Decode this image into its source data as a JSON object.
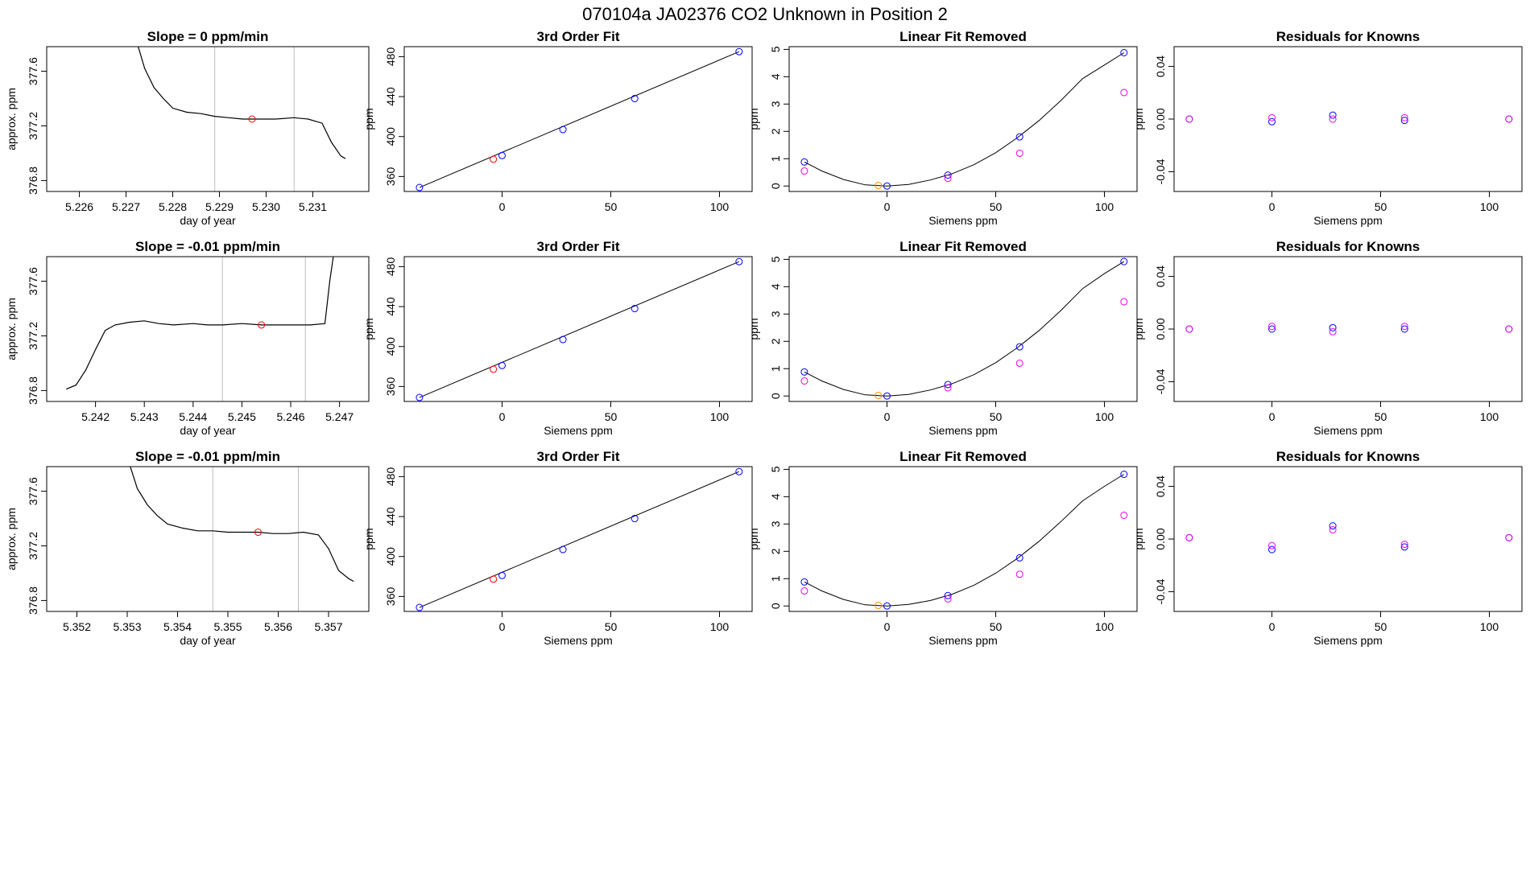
{
  "page_title": "070104a      JA02376   CO2 Unknown in Position  2",
  "colors": {
    "axis": "#000000",
    "line": "#000000",
    "grid": "#bebebe",
    "red": "#ff0000",
    "blue": "#0000ff",
    "magenta": "#ee00ee",
    "orange": "#ff8c00"
  },
  "chart_data": [
    {
      "type": "line",
      "row": 0,
      "col": 0,
      "title": "Slope =  0  ppm/min",
      "xlabel": "day of year",
      "ylabel": "approx. ppm",
      "xlim": [
        5.2253,
        5.2322
      ],
      "ylim": [
        376.72,
        377.78
      ],
      "xticks": [
        5.226,
        5.227,
        5.228,
        5.229,
        5.23,
        5.231
      ],
      "xticklabels": [
        "5.226",
        "5.227",
        "5.228",
        "5.229",
        "5.230",
        "5.231"
      ],
      "yticks": [
        376.8,
        377.2,
        377.6
      ],
      "yticklabels": [
        "376.8",
        "377.2",
        "377.6"
      ],
      "vlines": [
        5.2289,
        5.2306
      ],
      "highlight": {
        "x": 5.2297,
        "y": 377.25
      },
      "x": [
        5.2272,
        5.2274,
        5.2276,
        5.2278,
        5.228,
        5.2283,
        5.2286,
        5.2289,
        5.2292,
        5.2295,
        5.2299,
        5.2302,
        5.2306,
        5.2309,
        5.2312,
        5.2314,
        5.2316,
        5.2317
      ],
      "y": [
        377.85,
        377.62,
        377.48,
        377.4,
        377.33,
        377.3,
        377.29,
        377.27,
        377.26,
        377.25,
        377.25,
        377.25,
        377.26,
        377.25,
        377.22,
        377.08,
        376.98,
        376.96
      ]
    },
    {
      "type": "scatter_fit",
      "row": 0,
      "col": 1,
      "title": "3rd Order Fit",
      "xlabel": "",
      "ylabel": "ppm",
      "xlim": [
        -45,
        115
      ],
      "ylim": [
        345,
        490
      ],
      "xticks": [
        0,
        50,
        100
      ],
      "xticklabels": [
        "0",
        "50",
        "100"
      ],
      "yticks": [
        360,
        400,
        440,
        480
      ],
      "yticklabels": [
        "360",
        "400",
        "440",
        "480"
      ],
      "fit": {
        "x": [
          -38,
          109
        ],
        "y": [
          349,
          485
        ]
      },
      "points": [
        {
          "x": -38,
          "y": 349,
          "c": "blue"
        },
        {
          "x": -4,
          "y": 377.3,
          "c": "red"
        },
        {
          "x": 0,
          "y": 381,
          "c": "blue"
        },
        {
          "x": 28,
          "y": 407,
          "c": "blue"
        },
        {
          "x": 61,
          "y": 438,
          "c": "blue"
        },
        {
          "x": 109,
          "y": 485,
          "c": "blue"
        }
      ]
    },
    {
      "type": "scatter_fit",
      "row": 0,
      "col": 2,
      "title": "Linear Fit Removed",
      "xlabel": "Siemens ppm",
      "ylabel": "ppm",
      "xlim": [
        -45,
        115
      ],
      "ylim": [
        -0.2,
        5.1
      ],
      "xticks": [
        0,
        50,
        100
      ],
      "xticklabels": [
        "0",
        "50",
        "100"
      ],
      "yticks": [
        0,
        1,
        2,
        3,
        4,
        5
      ],
      "yticklabels": [
        "0",
        "1",
        "2",
        "3",
        "4",
        "5"
      ],
      "curve": {
        "x": [
          -38,
          -30,
          -20,
          -10,
          0,
          10,
          20,
          30,
          40,
          50,
          60,
          70,
          80,
          90,
          100,
          109
        ],
        "y": [
          0.88,
          0.55,
          0.24,
          0.04,
          0,
          0.06,
          0.22,
          0.45,
          0.78,
          1.22,
          1.77,
          2.4,
          3.13,
          3.93,
          4.43,
          4.88
        ]
      },
      "points": [
        {
          "x": -38,
          "y": 0.88,
          "c": "blue"
        },
        {
          "x": -38,
          "y": 0.55,
          "c": "magenta"
        },
        {
          "x": -4,
          "y": 0.02,
          "c": "orange"
        },
        {
          "x": 0,
          "y": 0,
          "c": "blue"
        },
        {
          "x": 28,
          "y": 0.4,
          "c": "blue"
        },
        {
          "x": 28,
          "y": 0.28,
          "c": "magenta"
        },
        {
          "x": 61,
          "y": 1.8,
          "c": "blue"
        },
        {
          "x": 61,
          "y": 1.2,
          "c": "magenta"
        },
        {
          "x": 109,
          "y": 4.88,
          "c": "blue"
        },
        {
          "x": 109,
          "y": 3.42,
          "c": "magenta"
        }
      ]
    },
    {
      "type": "scatter",
      "row": 0,
      "col": 3,
      "title": "Residuals for Knowns",
      "xlabel": "Siemens ppm",
      "ylabel": "ppm",
      "xlim": [
        -45,
        115
      ],
      "ylim": [
        -0.055,
        0.055
      ],
      "xticks": [
        0,
        50,
        100
      ],
      "xticklabels": [
        "0",
        "50",
        "100"
      ],
      "yticks": [
        -0.04,
        0,
        0.04
      ],
      "yticklabels": [
        "-0.04",
        "0.00",
        "0.04"
      ],
      "points": [
        {
          "x": -38,
          "y": 0,
          "c": "blue"
        },
        {
          "x": -38,
          "y": 0,
          "c": "magenta"
        },
        {
          "x": 0,
          "y": -0.002,
          "c": "blue"
        },
        {
          "x": 0,
          "y": 0.001,
          "c": "magenta"
        },
        {
          "x": 28,
          "y": 0.003,
          "c": "blue"
        },
        {
          "x": 28,
          "y": 0,
          "c": "magenta"
        },
        {
          "x": 61,
          "y": -0.001,
          "c": "blue"
        },
        {
          "x": 61,
          "y": 0.001,
          "c": "magenta"
        },
        {
          "x": 109,
          "y": 0,
          "c": "blue"
        },
        {
          "x": 109,
          "y": 0,
          "c": "magenta"
        }
      ]
    },
    {
      "type": "line",
      "row": 1,
      "col": 0,
      "title": "Slope =  -0.01  ppm/min",
      "xlabel": "day of year",
      "ylabel": "approx. ppm",
      "xlim": [
        5.241,
        5.2476
      ],
      "ylim": [
        376.72,
        377.78
      ],
      "xticks": [
        5.242,
        5.243,
        5.244,
        5.245,
        5.246,
        5.247
      ],
      "xticklabels": [
        "5.242",
        "5.243",
        "5.244",
        "5.245",
        "5.246",
        "5.247"
      ],
      "yticks": [
        376.8,
        377.2,
        377.6
      ],
      "yticklabels": [
        "376.8",
        "377.2",
        "377.6"
      ],
      "vlines": [
        5.2446,
        5.2463
      ],
      "highlight": {
        "x": 5.2454,
        "y": 377.28
      },
      "x": [
        5.2414,
        5.2416,
        5.2418,
        5.242,
        5.2422,
        5.2424,
        5.2427,
        5.243,
        5.2433,
        5.2436,
        5.244,
        5.2443,
        5.2446,
        5.245,
        5.2454,
        5.2457,
        5.246,
        5.2464,
        5.2467,
        5.2468,
        5.2469
      ],
      "y": [
        376.81,
        376.84,
        376.95,
        377.1,
        377.24,
        377.28,
        377.3,
        377.31,
        377.29,
        377.28,
        377.29,
        377.28,
        377.28,
        377.29,
        377.28,
        377.28,
        377.28,
        377.28,
        377.29,
        377.6,
        377.85
      ]
    },
    {
      "type": "scatter_fit",
      "row": 1,
      "col": 1,
      "title": "3rd Order Fit",
      "xlabel": "Siemens ppm",
      "ylabel": "ppm",
      "xlim": [
        -45,
        115
      ],
      "ylim": [
        345,
        490
      ],
      "xticks": [
        0,
        50,
        100
      ],
      "xticklabels": [
        "0",
        "50",
        "100"
      ],
      "yticks": [
        360,
        400,
        440,
        480
      ],
      "yticklabels": [
        "360",
        "400",
        "440",
        "480"
      ],
      "fit": {
        "x": [
          -38,
          109
        ],
        "y": [
          349,
          485
        ]
      },
      "points": [
        {
          "x": -38,
          "y": 349,
          "c": "blue"
        },
        {
          "x": -4,
          "y": 377.3,
          "c": "red"
        },
        {
          "x": 0,
          "y": 381,
          "c": "blue"
        },
        {
          "x": 28,
          "y": 407,
          "c": "blue"
        },
        {
          "x": 61,
          "y": 438,
          "c": "blue"
        },
        {
          "x": 109,
          "y": 485,
          "c": "blue"
        }
      ]
    },
    {
      "type": "scatter_fit",
      "row": 1,
      "col": 2,
      "title": "Linear Fit Removed",
      "xlabel": "Siemens ppm",
      "ylabel": "ppm",
      "xlim": [
        -45,
        115
      ],
      "ylim": [
        -0.2,
        5.1
      ],
      "xticks": [
        0,
        50,
        100
      ],
      "xticklabels": [
        "0",
        "50",
        "100"
      ],
      "yticks": [
        0,
        1,
        2,
        3,
        4,
        5
      ],
      "yticklabels": [
        "0",
        "1",
        "2",
        "3",
        "4",
        "5"
      ],
      "curve": {
        "x": [
          -38,
          -30,
          -20,
          -10,
          0,
          10,
          20,
          30,
          40,
          50,
          60,
          70,
          80,
          90,
          100,
          109
        ],
        "y": [
          0.88,
          0.55,
          0.24,
          0.04,
          0,
          0.06,
          0.22,
          0.45,
          0.78,
          1.22,
          1.77,
          2.4,
          3.13,
          3.93,
          4.48,
          4.92
        ]
      },
      "points": [
        {
          "x": -38,
          "y": 0.88,
          "c": "blue"
        },
        {
          "x": -38,
          "y": 0.55,
          "c": "magenta"
        },
        {
          "x": -4,
          "y": 0.02,
          "c": "orange"
        },
        {
          "x": 0,
          "y": 0,
          "c": "blue"
        },
        {
          "x": 28,
          "y": 0.42,
          "c": "blue"
        },
        {
          "x": 28,
          "y": 0.3,
          "c": "magenta"
        },
        {
          "x": 61,
          "y": 1.8,
          "c": "blue"
        },
        {
          "x": 61,
          "y": 1.2,
          "c": "magenta"
        },
        {
          "x": 109,
          "y": 4.92,
          "c": "blue"
        },
        {
          "x": 109,
          "y": 3.45,
          "c": "magenta"
        }
      ]
    },
    {
      "type": "scatter",
      "row": 1,
      "col": 3,
      "title": "Residuals for Knowns",
      "xlabel": "Siemens ppm",
      "ylabel": "ppm",
      "xlim": [
        -45,
        115
      ],
      "ylim": [
        -0.055,
        0.055
      ],
      "xticks": [
        0,
        50,
        100
      ],
      "xticklabels": [
        "0",
        "50",
        "100"
      ],
      "yticks": [
        -0.04,
        0,
        0.04
      ],
      "yticklabels": [
        "-0.04",
        "0.00",
        "0.04"
      ],
      "points": [
        {
          "x": -38,
          "y": 0,
          "c": "blue"
        },
        {
          "x": -38,
          "y": 0,
          "c": "magenta"
        },
        {
          "x": 0,
          "y": 0,
          "c": "blue"
        },
        {
          "x": 0,
          "y": 0.002,
          "c": "magenta"
        },
        {
          "x": 28,
          "y": 0.001,
          "c": "blue"
        },
        {
          "x": 28,
          "y": -0.002,
          "c": "magenta"
        },
        {
          "x": 61,
          "y": 0,
          "c": "blue"
        },
        {
          "x": 61,
          "y": 0.002,
          "c": "magenta"
        },
        {
          "x": 109,
          "y": 0,
          "c": "blue"
        },
        {
          "x": 109,
          "y": 0,
          "c": "magenta"
        }
      ]
    },
    {
      "type": "line",
      "row": 2,
      "col": 0,
      "title": "Slope =  -0.01  ppm/min",
      "xlabel": "day of year",
      "ylabel": "approx. ppm",
      "xlim": [
        5.3514,
        5.3578
      ],
      "ylim": [
        376.72,
        377.78
      ],
      "xticks": [
        5.352,
        5.353,
        5.354,
        5.355,
        5.356,
        5.357
      ],
      "xticklabels": [
        "5.352",
        "5.353",
        "5.354",
        "5.355",
        "5.356",
        "5.357"
      ],
      "yticks": [
        376.8,
        377.2,
        377.6
      ],
      "yticklabels": [
        "376.8",
        "377.2",
        "377.6"
      ],
      "vlines": [
        5.3547,
        5.3564
      ],
      "highlight": {
        "x": 5.3556,
        "y": 377.3
      },
      "x": [
        5.353,
        5.3532,
        5.3534,
        5.3536,
        5.3538,
        5.3541,
        5.3544,
        5.3547,
        5.355,
        5.3553,
        5.3556,
        5.3559,
        5.3562,
        5.3565,
        5.3568,
        5.357,
        5.3572,
        5.3574,
        5.3575
      ],
      "y": [
        377.85,
        377.62,
        377.5,
        377.42,
        377.36,
        377.33,
        377.31,
        377.31,
        377.3,
        377.3,
        377.3,
        377.29,
        377.29,
        377.3,
        377.28,
        377.18,
        377.02,
        376.96,
        376.94
      ]
    },
    {
      "type": "scatter_fit",
      "row": 2,
      "col": 1,
      "title": "3rd Order Fit",
      "xlabel": "Siemens ppm",
      "ylabel": "ppm",
      "xlim": [
        -45,
        115
      ],
      "ylim": [
        345,
        490
      ],
      "xticks": [
        0,
        50,
        100
      ],
      "xticklabels": [
        "0",
        "50",
        "100"
      ],
      "yticks": [
        360,
        400,
        440,
        480
      ],
      "yticklabels": [
        "360",
        "400",
        "440",
        "480"
      ],
      "fit": {
        "x": [
          -38,
          109
        ],
        "y": [
          349,
          485
        ]
      },
      "points": [
        {
          "x": -38,
          "y": 349,
          "c": "blue"
        },
        {
          "x": -4,
          "y": 377.3,
          "c": "red"
        },
        {
          "x": 0,
          "y": 381,
          "c": "blue"
        },
        {
          "x": 28,
          "y": 407,
          "c": "blue"
        },
        {
          "x": 61,
          "y": 438,
          "c": "blue"
        },
        {
          "x": 109,
          "y": 485,
          "c": "blue"
        }
      ]
    },
    {
      "type": "scatter_fit",
      "row": 2,
      "col": 2,
      "title": "Linear Fit Removed",
      "xlabel": "Siemens ppm",
      "ylabel": "ppm",
      "xlim": [
        -45,
        115
      ],
      "ylim": [
        -0.2,
        5.1
      ],
      "xticks": [
        0,
        50,
        100
      ],
      "xticklabels": [
        "0",
        "50",
        "100"
      ],
      "yticks": [
        0,
        1,
        2,
        3,
        4,
        5
      ],
      "yticklabels": [
        "0",
        "1",
        "2",
        "3",
        "4",
        "5"
      ],
      "curve": {
        "x": [
          -38,
          -30,
          -20,
          -10,
          0,
          10,
          20,
          30,
          40,
          50,
          60,
          70,
          80,
          90,
          100,
          109
        ],
        "y": [
          0.88,
          0.55,
          0.24,
          0.04,
          0,
          0.06,
          0.2,
          0.43,
          0.76,
          1.2,
          1.74,
          2.37,
          3.09,
          3.85,
          4.38,
          4.82
        ]
      },
      "points": [
        {
          "x": -38,
          "y": 0.88,
          "c": "blue"
        },
        {
          "x": -38,
          "y": 0.55,
          "c": "magenta"
        },
        {
          "x": -4,
          "y": 0.02,
          "c": "orange"
        },
        {
          "x": 0,
          "y": 0,
          "c": "blue"
        },
        {
          "x": 28,
          "y": 0.38,
          "c": "blue"
        },
        {
          "x": 28,
          "y": 0.26,
          "c": "magenta"
        },
        {
          "x": 61,
          "y": 1.76,
          "c": "blue"
        },
        {
          "x": 61,
          "y": 1.16,
          "c": "magenta"
        },
        {
          "x": 109,
          "y": 4.82,
          "c": "blue"
        },
        {
          "x": 109,
          "y": 3.32,
          "c": "magenta"
        }
      ]
    },
    {
      "type": "scatter",
      "row": 2,
      "col": 3,
      "title": "Residuals for Knowns",
      "xlabel": "Siemens ppm",
      "ylabel": "ppm",
      "xlim": [
        -45,
        115
      ],
      "ylim": [
        -0.055,
        0.055
      ],
      "xticks": [
        0,
        50,
        100
      ],
      "xticklabels": [
        "0",
        "50",
        "100"
      ],
      "yticks": [
        -0.04,
        0,
        0.04
      ],
      "yticklabels": [
        "-0.04",
        "0.00",
        "0.04"
      ],
      "points": [
        {
          "x": -38,
          "y": 0.001,
          "c": "blue"
        },
        {
          "x": -38,
          "y": 0.001,
          "c": "magenta"
        },
        {
          "x": 0,
          "y": -0.008,
          "c": "blue"
        },
        {
          "x": 0,
          "y": -0.005,
          "c": "magenta"
        },
        {
          "x": 28,
          "y": 0.01,
          "c": "blue"
        },
        {
          "x": 28,
          "y": 0.007,
          "c": "magenta"
        },
        {
          "x": 61,
          "y": -0.006,
          "c": "blue"
        },
        {
          "x": 61,
          "y": -0.004,
          "c": "magenta"
        },
        {
          "x": 109,
          "y": 0.001,
          "c": "blue"
        },
        {
          "x": 109,
          "y": 0.001,
          "c": "magenta"
        }
      ]
    }
  ]
}
